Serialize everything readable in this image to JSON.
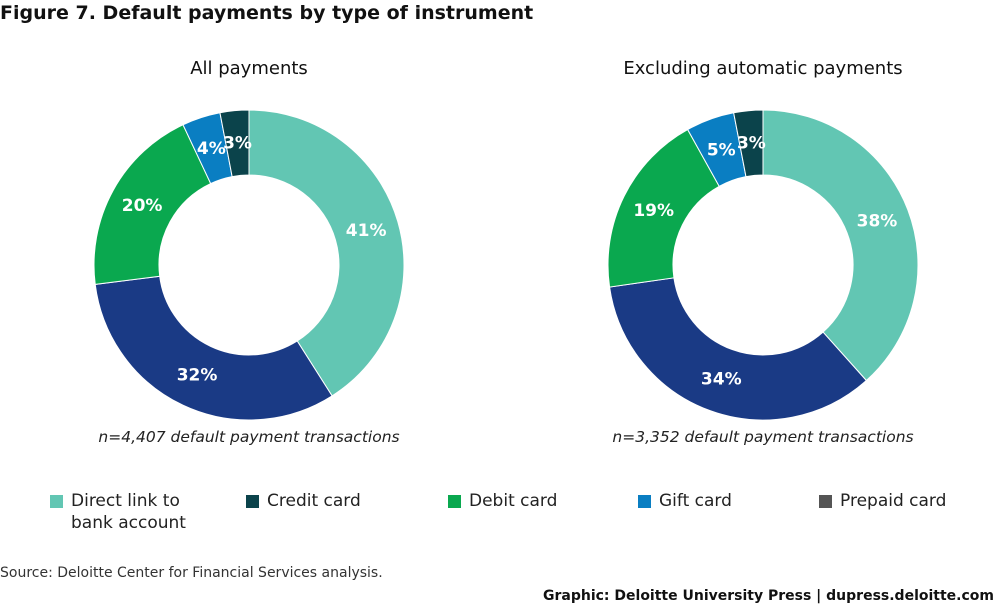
{
  "figure_title": "Figure 7. Default payments by type of instrument",
  "legend": [
    {
      "label": "Direct link to\nbank account",
      "color": "#62c6b3"
    },
    {
      "label": "Credit card",
      "color": "#0b434b"
    },
    {
      "label": "Debit card",
      "color": "#0aa84f"
    },
    {
      "label": "Gift card",
      "color": "#0a7ec2"
    },
    {
      "label": "Prepaid card",
      "color": "#555555"
    }
  ],
  "source": "Source: Deloitte Center for Financial Services analysis.",
  "credit": "Graphic: Deloitte University Press  |  dupress.deloitte.com",
  "chart_data": [
    {
      "type": "pie",
      "title": "All payments",
      "note": "n=4,407 default payment transactions",
      "slices": [
        {
          "label": "Direct link to bank account",
          "value": 41,
          "display": "41%",
          "color": "#62c6b3"
        },
        {
          "label": "Credit card",
          "value": 32,
          "display": "32%",
          "color": "#1a3a85"
        },
        {
          "label": "Debit card",
          "value": 20,
          "display": "20%",
          "color": "#0aa84f"
        },
        {
          "label": "Gift card",
          "value": 4,
          "display": "4%",
          "color": "#0a7ec2"
        },
        {
          "label": "Prepaid card",
          "value": 3,
          "display": "3%",
          "color": "#0b434b"
        }
      ]
    },
    {
      "type": "pie",
      "title": "Excluding automatic payments",
      "note": "n=3,352 default payment transactions",
      "slices": [
        {
          "label": "Direct link to bank account",
          "value": 38,
          "display": "38%",
          "color": "#62c6b3"
        },
        {
          "label": "Credit card",
          "value": 34,
          "display": "34%",
          "color": "#1a3a85"
        },
        {
          "label": "Debit card",
          "value": 19,
          "display": "19%",
          "color": "#0aa84f"
        },
        {
          "label": "Gift card",
          "value": 5,
          "display": "5%",
          "color": "#0a7ec2"
        },
        {
          "label": "Prepaid card",
          "value": 3,
          "display": "3%",
          "color": "#0b434b"
        }
      ]
    }
  ]
}
